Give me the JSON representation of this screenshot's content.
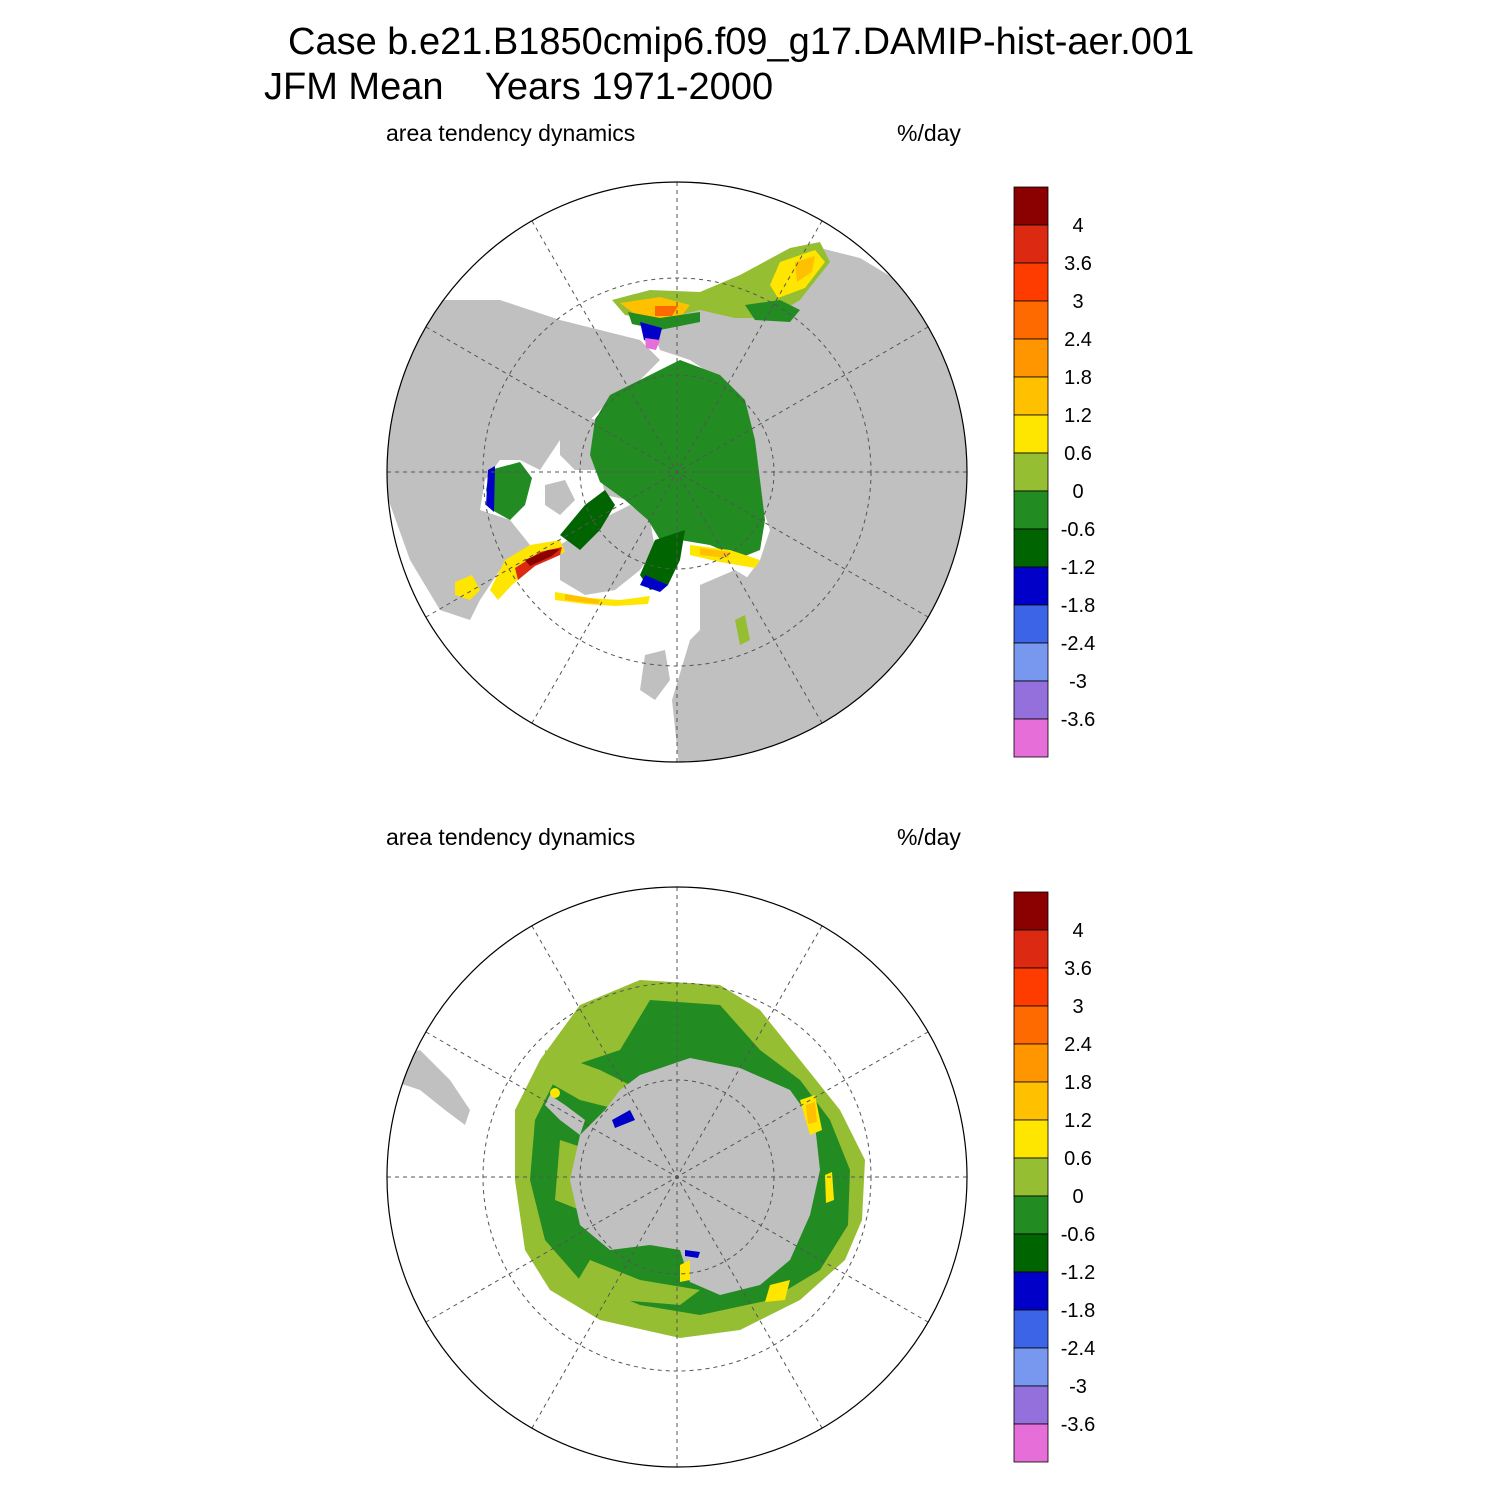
{
  "title": {
    "line1": "Case b.e21.B1850cmip6.f09_g17.DAMIP-hist-aer.001",
    "line2": "JFM Mean    Years 1971-2000"
  },
  "panels": [
    {
      "id": "north",
      "left_label": "area tendency dynamics",
      "right_label": "%/day",
      "hemisphere": "north"
    },
    {
      "id": "south",
      "left_label": "area tendency dynamics",
      "right_label": "%/day",
      "hemisphere": "south"
    }
  ],
  "colorbar": {
    "labels": [
      "4",
      "3.6",
      "3",
      "2.4",
      "1.8",
      "1.2",
      "0.6",
      "0",
      "-0.6",
      "-1.2",
      "-1.8",
      "-2.4",
      "-3",
      "-3.6"
    ],
    "colors_top_to_bottom": [
      "#8b0000",
      "#dc2a12",
      "#ff3c00",
      "#ff6a00",
      "#ff9600",
      "#ffc000",
      "#ffe600",
      "#96be32",
      "#228b22",
      "#006400",
      "#0000c8",
      "#3c64e6",
      "#7898f0",
      "#9370db",
      "#e66ed8"
    ]
  },
  "map_colors": {
    "land": "#c0c0c0",
    "ocean": "#ffffff",
    "pack_ice": "#228b22",
    "pack_ice_dark": "#006400",
    "edge_ice": "#96be32",
    "edge_yellow": "#ffe600",
    "edge_orange": "#ffc000",
    "edge_red": "#dc2a12",
    "edge_darkred": "#8b0000",
    "edge_blue": "#0000c8",
    "edge_violet": "#e66ed8"
  }
}
